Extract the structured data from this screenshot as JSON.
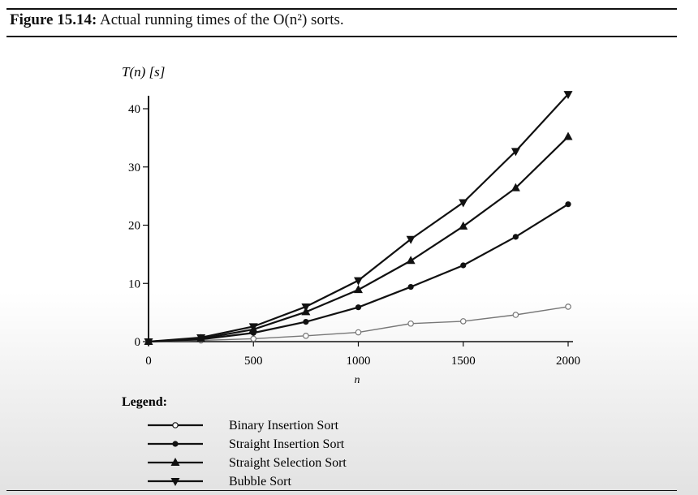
{
  "figure": {
    "number": "Figure 15.14:",
    "caption": "Actual running times of the O(n²) sorts."
  },
  "legend_title": "Legend:",
  "chart_data": {
    "type": "line",
    "xlabel": "n",
    "ylabel": "T(n) [s]",
    "xlim": [
      0,
      2000
    ],
    "ylim": [
      0,
      40
    ],
    "xticks": [
      0,
      500,
      1000,
      1500,
      2000
    ],
    "yticks": [
      0,
      10,
      20,
      30,
      40
    ],
    "grid": false,
    "legend_position": "bottom",
    "x": [
      0,
      250,
      500,
      750,
      1000,
      1250,
      1500,
      1750,
      2000
    ],
    "series": [
      {
        "name": "Binary Insertion Sort",
        "marker": "open-circle",
        "color": "#777777",
        "values": [
          0,
          0.2,
          0.5,
          1.0,
          1.6,
          3.1,
          3.5,
          4.6,
          6.0
        ]
      },
      {
        "name": "Straight Insertion Sort",
        "marker": "filled-circle",
        "color": "#111111",
        "values": [
          0,
          0.4,
          1.5,
          3.4,
          5.9,
          9.4,
          13.1,
          18.0,
          23.6
        ]
      },
      {
        "name": "Straight Selection Sort",
        "marker": "triangle-up",
        "color": "#111111",
        "values": [
          0,
          0.5,
          2.1,
          5.1,
          8.9,
          13.9,
          19.8,
          26.4,
          35.2
        ]
      },
      {
        "name": "Bubble Sort",
        "marker": "triangle-down",
        "color": "#111111",
        "values": [
          0,
          0.7,
          2.6,
          6.0,
          10.5,
          17.6,
          23.9,
          32.7,
          42.5
        ]
      }
    ]
  }
}
